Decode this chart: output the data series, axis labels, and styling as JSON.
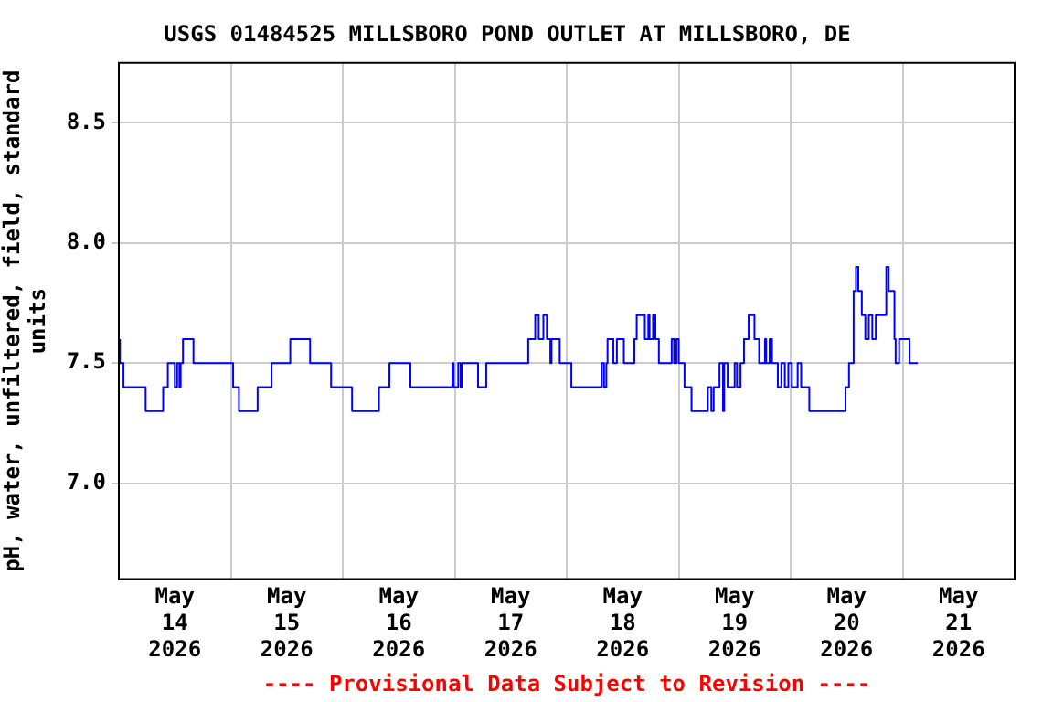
{
  "chart_data": {
    "type": "step",
    "title": "USGS 01484525 MILLSBORO POND OUTLET AT MILLSBORO, DE",
    "ylabel": "pH, water, unfiltered, field, standard units",
    "annotations": [
      "---- Provisional Data Subject to Revision ----"
    ],
    "x": [
      "2026-05-14T00:15",
      "2026-05-14T01:00",
      "2026-05-14T05:45",
      "2026-05-14T09:30",
      "2026-05-14T10:30",
      "2026-05-14T12:00",
      "2026-05-14T12:30",
      "2026-05-14T13:00",
      "2026-05-14T13:15",
      "2026-05-14T13:45",
      "2026-05-14T16:00",
      "2026-05-15T00:30",
      "2026-05-15T01:45",
      "2026-05-15T05:45",
      "2026-05-15T08:45",
      "2026-05-15T12:45",
      "2026-05-15T17:00",
      "2026-05-15T21:30",
      "2026-05-16T02:00",
      "2026-05-16T07:45",
      "2026-05-16T10:00",
      "2026-05-16T14:30",
      "2026-05-16T23:30",
      "2026-05-16T23:45",
      "2026-05-17T00:45",
      "2026-05-17T01:15",
      "2026-05-17T01:30",
      "2026-05-17T05:00",
      "2026-05-17T06:45",
      "2026-05-17T15:45",
      "2026-05-17T17:15",
      "2026-05-17T18:00",
      "2026-05-17T19:00",
      "2026-05-17T19:45",
      "2026-05-17T20:30",
      "2026-05-17T20:45",
      "2026-05-17T22:30",
      "2026-05-18T01:00",
      "2026-05-18T07:30",
      "2026-05-18T08:00",
      "2026-05-18T08:30",
      "2026-05-18T08:45",
      "2026-05-18T10:00",
      "2026-05-18T10:45",
      "2026-05-18T12:15",
      "2026-05-18T14:30",
      "2026-05-18T15:00",
      "2026-05-18T16:45",
      "2026-05-18T17:30",
      "2026-05-18T17:45",
      "2026-05-18T18:30",
      "2026-05-18T19:00",
      "2026-05-18T19:45",
      "2026-05-18T22:30",
      "2026-05-18T23:00",
      "2026-05-18T23:30",
      "2026-05-19T00:00",
      "2026-05-19T01:15",
      "2026-05-19T02:45",
      "2026-05-19T06:15",
      "2026-05-19T07:00",
      "2026-05-19T07:30",
      "2026-05-19T08:45",
      "2026-05-19T09:30",
      "2026-05-19T09:45",
      "2026-05-19T10:30",
      "2026-05-19T12:00",
      "2026-05-19T12:30",
      "2026-05-19T13:15",
      "2026-05-19T14:00",
      "2026-05-19T15:00",
      "2026-05-19T16:15",
      "2026-05-19T17:15",
      "2026-05-19T18:30",
      "2026-05-19T18:45",
      "2026-05-19T19:30",
      "2026-05-19T20:00",
      "2026-05-19T21:15",
      "2026-05-19T22:00",
      "2026-05-19T22:45",
      "2026-05-19T23:30",
      "2026-05-20T00:15",
      "2026-05-20T01:30",
      "2026-05-20T02:15",
      "2026-05-20T04:00",
      "2026-05-20T11:45",
      "2026-05-20T12:30",
      "2026-05-20T13:30",
      "2026-05-20T14:00",
      "2026-05-20T14:30",
      "2026-05-20T15:15",
      "2026-05-20T16:00",
      "2026-05-20T16:45",
      "2026-05-20T17:30",
      "2026-05-20T18:15",
      "2026-05-20T20:30",
      "2026-05-20T21:00",
      "2026-05-20T22:15",
      "2026-05-20T22:30",
      "2026-05-20T23:15",
      "2026-05-21T01:30",
      "2026-05-21T02:30",
      "2026-05-21T03:15"
    ],
    "series": [
      {
        "color": "#0000ff",
        "values": [
          7.6,
          7.5,
          7.4,
          7.3,
          7.4,
          7.5,
          7.4,
          7.5,
          7.4,
          7.5,
          7.6,
          7.5,
          7.4,
          7.3,
          7.4,
          7.5,
          7.6,
          7.5,
          7.4,
          7.3,
          7.4,
          7.5,
          7.4,
          7.5,
          7.4,
          7.5,
          7.4,
          7.5,
          7.4,
          7.5,
          7.6,
          7.7,
          7.6,
          7.7,
          7.6,
          7.5,
          7.6,
          7.5,
          7.4,
          7.5,
          7.4,
          7.5,
          7.6,
          7.5,
          7.6,
          7.5,
          7.6,
          7.7,
          7.6,
          7.7,
          7.6,
          7.7,
          7.6,
          7.5,
          7.6,
          7.5,
          7.6,
          7.5,
          7.4,
          7.3,
          7.4,
          7.3,
          7.4,
          7.5,
          7.3,
          7.5,
          7.4,
          7.5,
          7.4,
          7.5,
          7.6,
          7.7,
          7.6,
          7.5,
          7.6,
          7.5,
          7.6,
          7.5,
          7.4,
          7.5,
          7.4,
          7.5,
          7.4,
          7.5,
          7.4,
          7.3,
          7.4,
          7.5,
          7.8,
          7.9,
          7.8,
          7.7,
          7.6,
          7.7,
          7.6,
          7.7,
          7.9,
          7.8,
          7.6,
          7.5,
          7.6,
          7.5,
          7.5
        ]
      }
    ],
    "xlim": [
      "2026-05-14T00:00",
      "2026-05-22T00:00"
    ],
    "xticks": [
      {
        "value": "2026-05-14T12:00",
        "label": "May 14 2026"
      },
      {
        "value": "2026-05-15T00:00",
        "label": null
      },
      {
        "value": "2026-05-15T12:00",
        "label": "May 15 2026"
      },
      {
        "value": "2026-05-16T00:00",
        "label": null
      },
      {
        "value": "2026-05-16T12:00",
        "label": "May 16 2026"
      },
      {
        "value": "2026-05-17T00:00",
        "label": null
      },
      {
        "value": "2026-05-17T12:00",
        "label": "May 17 2026"
      },
      {
        "value": "2026-05-18T00:00",
        "label": null
      },
      {
        "value": "2026-05-18T12:00",
        "label": "May 18 2026"
      },
      {
        "value": "2026-05-19T00:00",
        "label": null
      },
      {
        "value": "2026-05-19T12:00",
        "label": "May 19 2026"
      },
      {
        "value": "2026-05-20T00:00",
        "label": null
      },
      {
        "value": "2026-05-20T12:00",
        "label": "May 20 2026"
      },
      {
        "value": "2026-05-21T00:00",
        "label": null
      },
      {
        "value": "2026-05-21T12:00",
        "label": "May 21 2026"
      }
    ],
    "ylim": [
      6.6,
      8.75
    ],
    "yticks": [
      {
        "value": 7,
        "label": "7.0"
      },
      {
        "value": 7.5,
        "label": "7.5"
      },
      {
        "value": 8,
        "label": "8.0"
      },
      {
        "value": 8.5,
        "label": "8.5"
      }
    ],
    "grid": true,
    "legend": false,
    "marker": "none",
    "line_style": "solid"
  }
}
